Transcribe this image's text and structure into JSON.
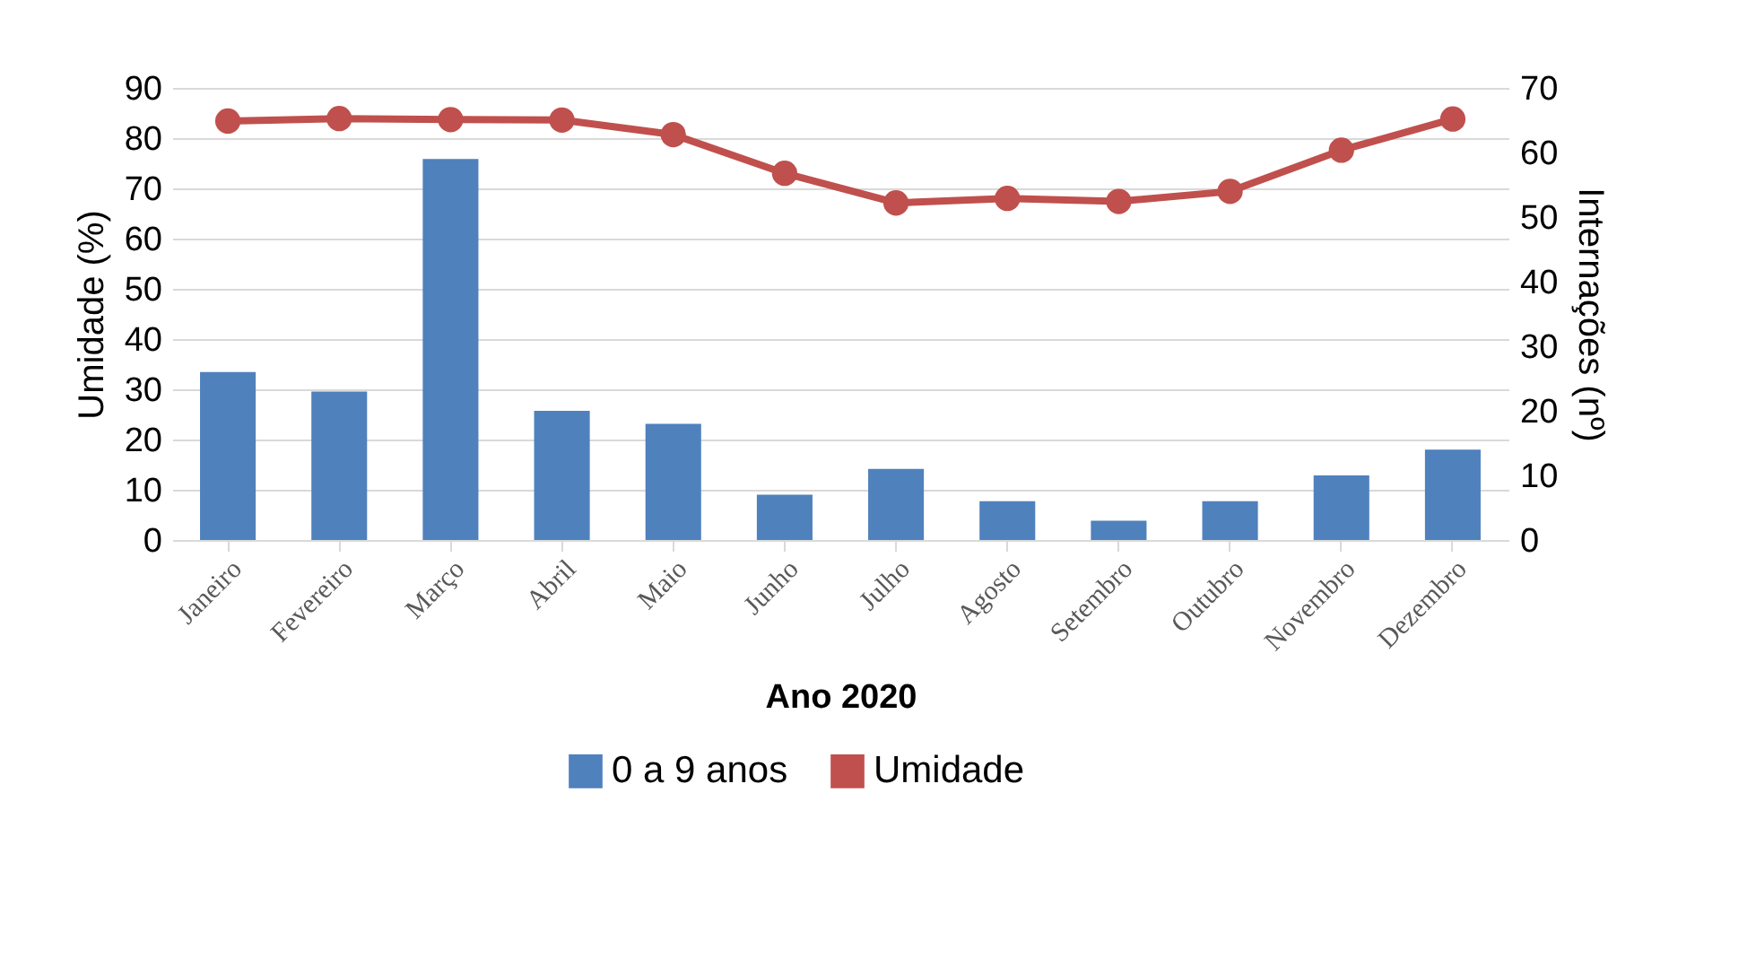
{
  "chart_data": {
    "type": "bar",
    "xlabel": "Ano 2020",
    "ylabel": "Umidade (%)",
    "y2label": "Internações (nº)",
    "categories": [
      "Janeiro",
      "Fevereiro",
      "Março",
      "Abril",
      "Maio",
      "Junho",
      "Julho",
      "Agosto",
      "Setembro",
      "Outubro",
      "Novembro",
      "Dezembro"
    ],
    "series": [
      {
        "name": "0 a 9 anos",
        "axis": "y2",
        "color": "#4f81bd",
        "values": [
          26,
          23,
          59,
          20,
          18,
          7,
          11,
          6,
          3,
          6,
          10,
          14
        ]
      },
      {
        "name": "Umidade",
        "type": "line",
        "color": "#c0504d",
        "values": [
          83.4,
          83.9,
          83.7,
          83.6,
          80.7,
          73.0,
          67.1,
          68.0,
          67.4,
          69.4,
          77.6,
          83.8
        ]
      }
    ],
    "ylim": [
      0,
      90
    ],
    "yticks": [
      0,
      10,
      20,
      30,
      40,
      50,
      60,
      70,
      80,
      90
    ],
    "y2lim": [
      0,
      70
    ],
    "y2ticks": [
      0,
      10,
      20,
      30,
      40,
      50,
      60,
      70
    ],
    "grid": "y",
    "legend": "bottom",
    "marker": "circle"
  }
}
